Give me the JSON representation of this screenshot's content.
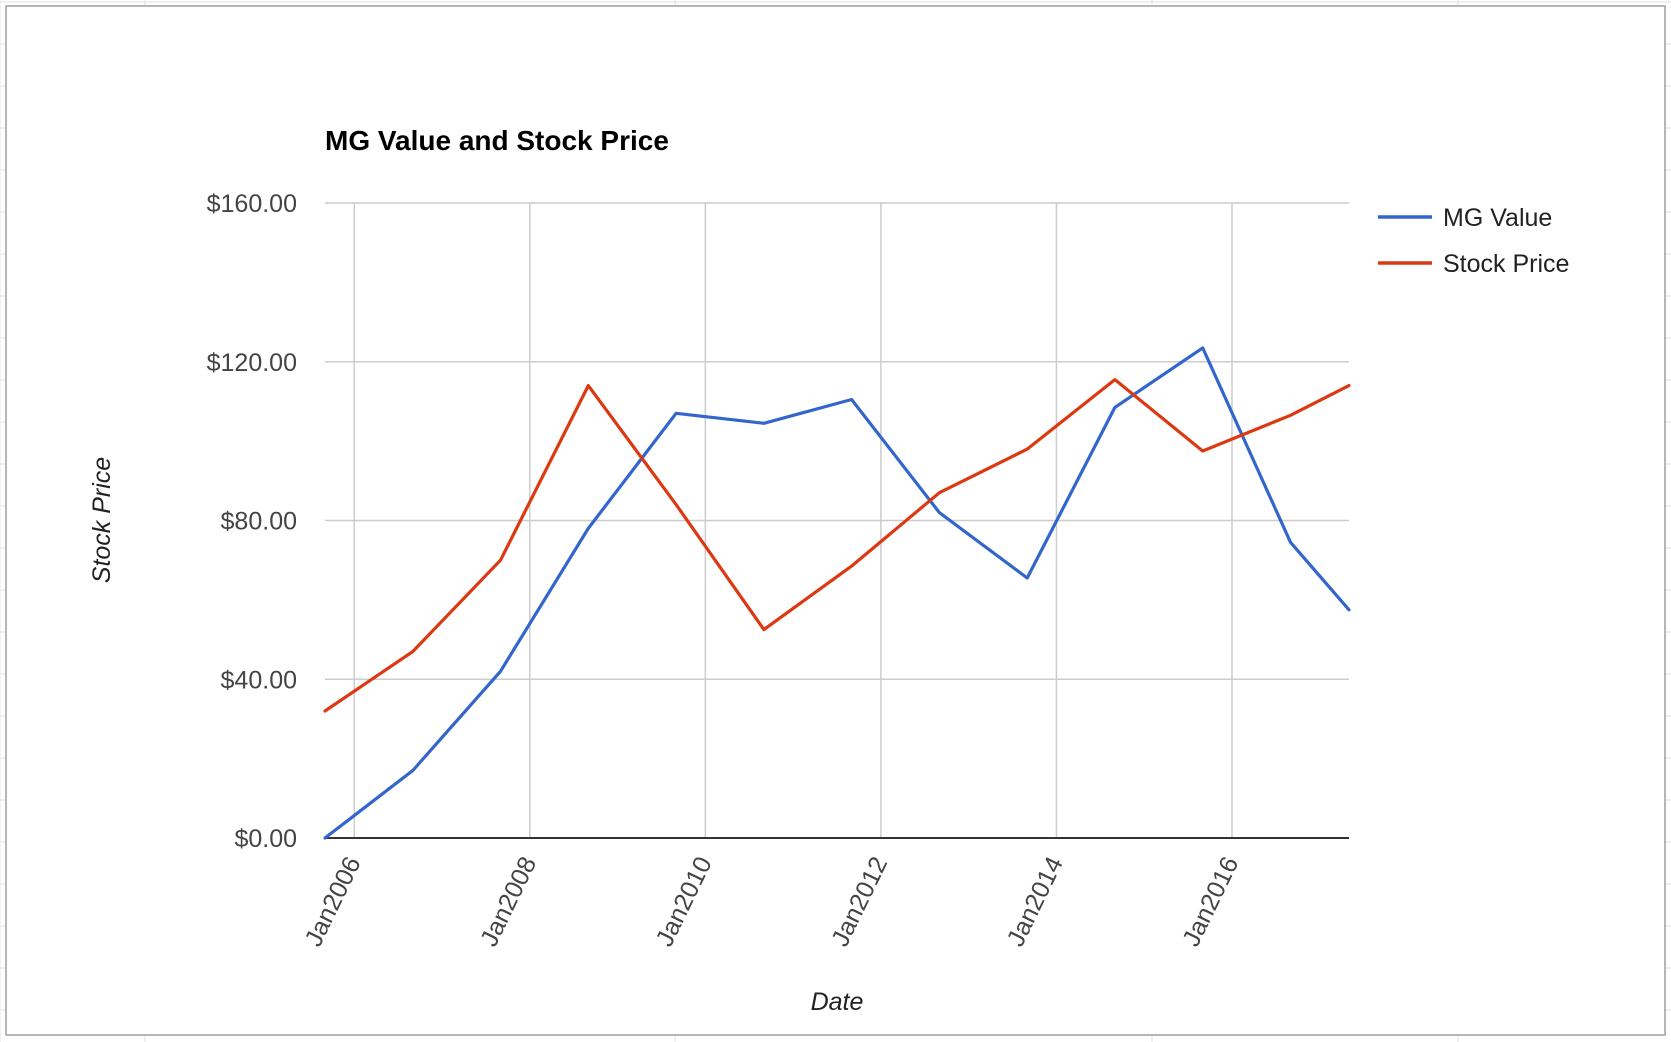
{
  "chart_data": {
    "type": "line",
    "title": "MG Value and Stock Price",
    "xlabel": "Date",
    "ylabel": "Stock Price",
    "x_tick_labels": [
      "Jan2006",
      "Jan2008",
      "Jan2010",
      "Jan2012",
      "Jan2014",
      "Jan2016"
    ],
    "y_tick_labels": [
      "$0.00",
      "$40.00",
      "$80.00",
      "$120.00",
      "$160.00"
    ],
    "y_ticks": [
      0,
      40,
      80,
      120,
      160
    ],
    "ylim": [
      0,
      160
    ],
    "xlim": [
      "2005-09",
      "2017-05"
    ],
    "x": [
      "2005-09",
      "2006-09",
      "2007-09",
      "2008-09",
      "2009-09",
      "2010-09",
      "2011-09",
      "2012-09",
      "2013-09",
      "2014-09",
      "2015-09",
      "2016-09",
      "2017-05"
    ],
    "series": [
      {
        "name": "MG Value",
        "color": "#3366cc",
        "values": [
          0,
          17,
          42,
          78,
          107,
          104.5,
          110.5,
          82,
          65.5,
          108.5,
          123.5,
          74.5,
          57.5
        ]
      },
      {
        "name": "Stock Price",
        "color": "#dc3912",
        "values": [
          32,
          47,
          70,
          114,
          84,
          52.5,
          68.5,
          87,
          98,
          115.5,
          97.5,
          106.5,
          114
        ]
      }
    ],
    "grid": true,
    "legend": "right"
  }
}
